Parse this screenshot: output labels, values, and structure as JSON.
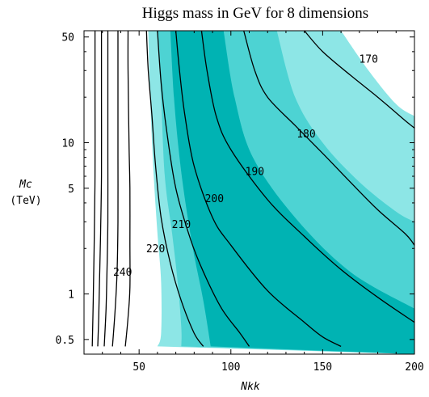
{
  "chart_data": {
    "type": "contour",
    "title": "Higgs mass in GeV for 8 dimensions",
    "xlabel": "Nkk",
    "ylabel": "Mc",
    "ylabel_unit": "(TeV)",
    "xlim": [
      20,
      200
    ],
    "ylim": [
      0.4,
      55
    ],
    "y_scale": "log",
    "x_ticks": [
      "50",
      "100",
      "150",
      "200"
    ],
    "x_tick_values": [
      50,
      100,
      150,
      200
    ],
    "y_ticks": [
      "0.5",
      "1",
      "5",
      "10",
      "50"
    ],
    "y_tick_values": [
      0.5,
      1,
      5,
      10,
      50
    ],
    "contour_levels": [
      170,
      180,
      190,
      200,
      210,
      220,
      240
    ],
    "contours": [
      {
        "label": "170",
        "points": [
          [
            140,
            55
          ],
          [
            150,
            40
          ],
          [
            165,
            28
          ],
          [
            180,
            20
          ],
          [
            195,
            14
          ],
          [
            200,
            12.5
          ]
        ]
      },
      {
        "label": "180",
        "points": [
          [
            107,
            55
          ],
          [
            113,
            30
          ],
          [
            120,
            20
          ],
          [
            135,
            13
          ],
          [
            150,
            8.5
          ],
          [
            165,
            5.5
          ],
          [
            180,
            3.6
          ],
          [
            195,
            2.5
          ],
          [
            200,
            2.1
          ]
        ]
      },
      {
        "label": "190",
        "points": [
          [
            84,
            55
          ],
          [
            87,
            30
          ],
          [
            92,
            15
          ],
          [
            100,
            9
          ],
          [
            120,
            4.2
          ],
          [
            140,
            2.4
          ],
          [
            160,
            1.45
          ],
          [
            180,
            0.95
          ],
          [
            200,
            0.65
          ]
        ]
      },
      {
        "label": "200",
        "points": [
          [
            70,
            55
          ],
          [
            72,
            30
          ],
          [
            75,
            15
          ],
          [
            80,
            7
          ],
          [
            90,
            3.2
          ],
          [
            100,
            2.1
          ],
          [
            120,
            1.05
          ],
          [
            140,
            0.65
          ],
          [
            150,
            0.52
          ],
          [
            160,
            0.45
          ]
        ]
      },
      {
        "label": "210",
        "points": [
          [
            60,
            55
          ],
          [
            62,
            25
          ],
          [
            65,
            12
          ],
          [
            70,
            5
          ],
          [
            78,
            2.3
          ],
          [
            85,
            1.4
          ],
          [
            95,
            0.8
          ],
          [
            105,
            0.55
          ],
          [
            110,
            0.45
          ]
        ]
      },
      {
        "label": "220",
        "points": [
          [
            54,
            55
          ],
          [
            55,
            30
          ],
          [
            57,
            15
          ],
          [
            59,
            7
          ],
          [
            62,
            3.2
          ],
          [
            67,
            1.6
          ],
          [
            73,
            0.9
          ],
          [
            80,
            0.55
          ],
          [
            85,
            0.45
          ]
        ]
      },
      {
        "label": "240",
        "points": [
          [
            44,
            55
          ],
          [
            44,
            30
          ],
          [
            44.5,
            10
          ],
          [
            45,
            5
          ],
          [
            45,
            2.2
          ],
          [
            45,
            1.1
          ],
          [
            44,
            0.7
          ],
          [
            42.5,
            0.45
          ]
        ]
      },
      {
        "label": "",
        "points": [
          [
            38.5,
            55
          ],
          [
            38.5,
            20
          ],
          [
            38.5,
            8
          ],
          [
            38.5,
            3
          ],
          [
            38,
            1.4
          ],
          [
            37,
            0.8
          ],
          [
            35.5,
            0.45
          ]
        ]
      },
      {
        "label": "",
        "points": [
          [
            33,
            55
          ],
          [
            33,
            20
          ],
          [
            33,
            8
          ],
          [
            33,
            3
          ],
          [
            32.5,
            1.4
          ],
          [
            32,
            0.8
          ],
          [
            31,
            0.45
          ]
        ]
      },
      {
        "label": "",
        "points": [
          [
            29.5,
            55
          ],
          [
            29.5,
            20
          ],
          [
            29.5,
            6
          ],
          [
            29,
            2.5
          ],
          [
            28.5,
            1.3
          ],
          [
            28,
            0.7
          ],
          [
            27.5,
            0.45
          ]
        ]
      },
      {
        "label": "",
        "points": [
          [
            26,
            55
          ],
          [
            26,
            20
          ],
          [
            26,
            6
          ],
          [
            25.5,
            2
          ],
          [
            25,
            0.9
          ],
          [
            24.5,
            0.45
          ]
        ]
      }
    ],
    "contour_label_positions": [
      {
        "label": "170",
        "at": [
          175,
          36
        ]
      },
      {
        "label": "180",
        "at": [
          141,
          11.5
        ]
      },
      {
        "label": "190",
        "at": [
          113,
          6.5
        ]
      },
      {
        "label": "200",
        "at": [
          91,
          4.3
        ]
      },
      {
        "label": "210",
        "at": [
          73,
          2.9
        ]
      },
      {
        "label": "220",
        "at": [
          59,
          2
        ]
      },
      {
        "label": "240",
        "at": [
          41,
          1.4
        ]
      }
    ],
    "shaded_regions": [
      {
        "name": "band-1",
        "color": "#8de6e6",
        "left": [
          [
            55,
            55
          ],
          [
            56,
            20
          ],
          [
            58,
            6
          ],
          [
            60,
            2.5
          ],
          [
            62,
            1.2
          ],
          [
            62,
            0.55
          ],
          [
            60,
            0.45
          ]
        ],
        "right": [
          [
            160,
            55
          ],
          [
            175,
            30
          ],
          [
            190,
            18
          ],
          [
            200,
            15
          ]
        ]
      },
      {
        "name": "band-2",
        "color": "#4dd3d3",
        "left": [
          [
            60,
            55
          ],
          [
            62,
            20
          ],
          [
            64,
            6
          ],
          [
            68,
            2.5
          ],
          [
            71,
            1.2
          ],
          [
            73,
            0.6
          ],
          [
            73,
            0.45
          ]
        ],
        "right": [
          [
            125,
            55
          ],
          [
            135,
            20
          ],
          [
            150,
            10
          ],
          [
            170,
            5.5
          ],
          [
            190,
            3.5
          ],
          [
            200,
            3
          ]
        ]
      },
      {
        "name": "band-3",
        "color": "#00b3b3",
        "left": [
          [
            67,
            55
          ],
          [
            69,
            20
          ],
          [
            72,
            8
          ],
          [
            76,
            3.5
          ],
          [
            80,
            1.8
          ],
          [
            85,
            0.9
          ],
          [
            89,
            0.45
          ]
        ],
        "right": [
          [
            96,
            55
          ],
          [
            102,
            20
          ],
          [
            112,
            8
          ],
          [
            135,
            3.2
          ],
          [
            165,
            1.4
          ],
          [
            200,
            0.8
          ]
        ]
      }
    ],
    "colors": {
      "band_light": "#8de6e6",
      "band_mid": "#4dd3d3",
      "band_dark": "#00b3b3",
      "contour": "#000000",
      "background": "#ffffff"
    },
    "grid": false,
    "legend": "none"
  }
}
